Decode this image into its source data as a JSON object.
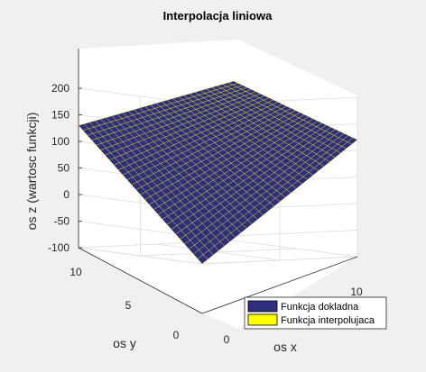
{
  "chart_data": {
    "type": "surface3d",
    "title": "Interpolacja liniowa",
    "xlabel": "os x",
    "ylabel": "os y",
    "zlabel": "os z (wartosc funkcji)",
    "xlim": [
      0,
      10
    ],
    "ylim": [
      0,
      10
    ],
    "zlim": [
      -100,
      200
    ],
    "x_ticks": [
      "0",
      "10"
    ],
    "y_ticks": [
      "0",
      "5",
      "10"
    ],
    "z_ticks": [
      "-100",
      "-50",
      "0",
      "50",
      "100",
      "150",
      "200"
    ],
    "surface_corners": [
      {
        "x": 0,
        "y": 0,
        "z": -100
      },
      {
        "x": 10,
        "y": 0,
        "z": 120
      },
      {
        "x": 0,
        "y": 10,
        "z": 130
      },
      {
        "x": 10,
        "y": 10,
        "z": 200
      }
    ],
    "grid": true,
    "legend": {
      "location": "bottom-right",
      "entries": [
        {
          "label": "Funkcja dokladna",
          "color": "#2e2e7e"
        },
        {
          "label": "Funkcja interpolujaca",
          "color": "#ffff00"
        }
      ]
    }
  }
}
